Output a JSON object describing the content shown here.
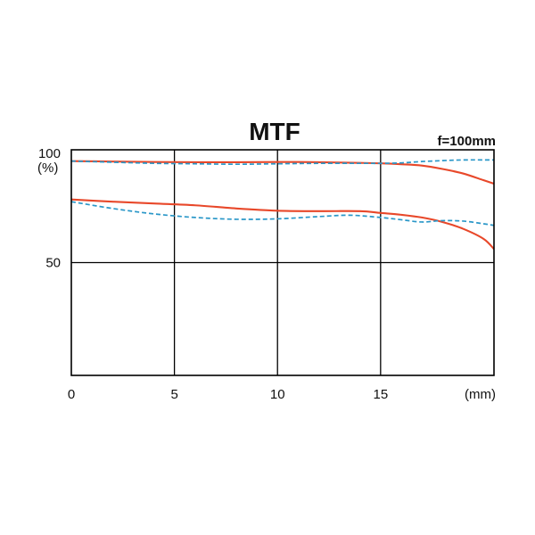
{
  "chart_data": {
    "type": "line",
    "title": "MTF",
    "annotation": "f=100mm",
    "xlabel": "(mm)",
    "ylabel": "(%)",
    "xlim": [
      0,
      20.5
    ],
    "ylim": [
      0,
      100
    ],
    "x_ticks": [
      "0",
      "5",
      "10",
      "15"
    ],
    "y_ticks": [
      "100",
      "50"
    ],
    "grid": true,
    "colors": {
      "sagittal": "#e8482a",
      "meridional": "#2a97c8"
    },
    "series": [
      {
        "style": "solid",
        "color": "#e8482a",
        "points": [
          [
            0,
            95
          ],
          [
            2,
            94.8
          ],
          [
            4,
            94.6
          ],
          [
            6,
            94.5
          ],
          [
            8,
            94.5
          ],
          [
            10,
            94.6
          ],
          [
            12,
            94.5
          ],
          [
            14,
            94.2
          ],
          [
            15,
            94
          ],
          [
            16,
            93.6
          ],
          [
            17,
            93
          ],
          [
            18,
            91.5
          ],
          [
            19,
            89.5
          ],
          [
            20,
            86.5
          ],
          [
            20.5,
            85
          ]
        ]
      },
      {
        "style": "dashed",
        "color": "#2a97c8",
        "points": [
          [
            0,
            95
          ],
          [
            2,
            94.5
          ],
          [
            4,
            94
          ],
          [
            6,
            93.8
          ],
          [
            8,
            93.6
          ],
          [
            10,
            93.8
          ],
          [
            12,
            94
          ],
          [
            14,
            94
          ],
          [
            15,
            94
          ],
          [
            16,
            94.2
          ],
          [
            17,
            94.8
          ],
          [
            18,
            95.2
          ],
          [
            19,
            95.5
          ],
          [
            20.5,
            95.5
          ]
        ]
      },
      {
        "style": "solid",
        "color": "#e8482a",
        "points": [
          [
            0,
            78
          ],
          [
            2,
            77
          ],
          [
            4,
            76.2
          ],
          [
            6,
            75.4
          ],
          [
            8,
            74
          ],
          [
            10,
            73
          ],
          [
            12,
            72.8
          ],
          [
            14,
            72.8
          ],
          [
            15,
            72
          ],
          [
            16,
            71.2
          ],
          [
            17,
            70
          ],
          [
            18,
            68
          ],
          [
            19,
            65
          ],
          [
            20,
            60.5
          ],
          [
            20.5,
            56
          ]
        ]
      },
      {
        "style": "dashed",
        "color": "#2a97c8",
        "points": [
          [
            0,
            77
          ],
          [
            2,
            74
          ],
          [
            4,
            71.6
          ],
          [
            6,
            70
          ],
          [
            8,
            69.2
          ],
          [
            10,
            69.4
          ],
          [
            12,
            70.4
          ],
          [
            13.5,
            71
          ],
          [
            15,
            70
          ],
          [
            16,
            69
          ],
          [
            17,
            68
          ],
          [
            18,
            68.6
          ],
          [
            19,
            68.4
          ],
          [
            20,
            67.2
          ],
          [
            20.5,
            66.5
          ]
        ]
      }
    ]
  }
}
